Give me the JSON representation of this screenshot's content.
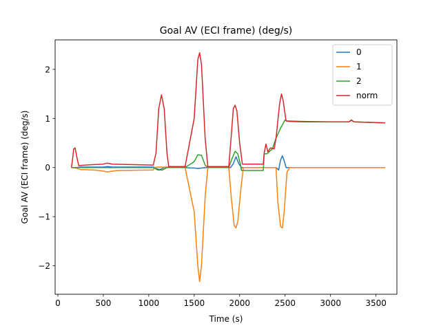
{
  "chart_data": {
    "type": "line",
    "title": "Goal AV (ECI frame) (deg/s)",
    "xlabel": "Time (s)",
    "ylabel": "Goal AV (ECI frame) (deg/s)",
    "xlim": [
      -30,
      3730
    ],
    "ylim": [
      -2.58,
      2.6
    ],
    "xticks": [
      0,
      500,
      1000,
      1500,
      2000,
      2500,
      3000,
      3500
    ],
    "yticks": [
      -2,
      -1,
      0,
      1,
      2
    ],
    "ytick_labels": [
      "−2",
      "−1",
      "0",
      "1",
      "2"
    ],
    "grid": false,
    "legend": "top-right",
    "series": [
      {
        "name": "0",
        "color": "#1f77b4",
        "points": [
          [
            150,
            0
          ],
          [
            200,
            0
          ],
          [
            250,
            0.01
          ],
          [
            500,
            0.01
          ],
          [
            550,
            0.02
          ],
          [
            600,
            0.01
          ],
          [
            1050,
            0.01
          ],
          [
            1080,
            -0.02
          ],
          [
            1120,
            -0.04
          ],
          [
            1150,
            -0.02
          ],
          [
            1180,
            0.01
          ],
          [
            1300,
            0.01
          ],
          [
            1400,
            0.0
          ],
          [
            1460,
            -0.01
          ],
          [
            1500,
            -0.01
          ],
          [
            1540,
            -0.02
          ],
          [
            1580,
            -0.01
          ],
          [
            1620,
            0.0
          ],
          [
            1900,
            0.0
          ],
          [
            1930,
            0.08
          ],
          [
            1960,
            0.22
          ],
          [
            1990,
            0.08
          ],
          [
            2020,
            0.0
          ],
          [
            2260,
            0.0
          ],
          [
            2400,
            0.0
          ],
          [
            2430,
            -0.05
          ],
          [
            2450,
            0.15
          ],
          [
            2470,
            0.24
          ],
          [
            2490,
            0.14
          ],
          [
            2510,
            0.0
          ],
          [
            3600,
            0.0
          ]
        ]
      },
      {
        "name": "1",
        "color": "#ff7f0e",
        "points": [
          [
            150,
            0
          ],
          [
            200,
            -0.01
          ],
          [
            250,
            -0.04
          ],
          [
            400,
            -0.05
          ],
          [
            500,
            -0.07
          ],
          [
            540,
            -0.09
          ],
          [
            580,
            -0.08
          ],
          [
            650,
            -0.06
          ],
          [
            1050,
            -0.05
          ],
          [
            1060,
            0.0
          ],
          [
            1100,
            0.01
          ],
          [
            1400,
            0.0
          ],
          [
            1500,
            -0.9
          ],
          [
            1540,
            -2.0
          ],
          [
            1560,
            -2.32
          ],
          [
            1580,
            -2.0
          ],
          [
            1620,
            -0.6
          ],
          [
            1650,
            0.0
          ],
          [
            1880,
            0.0
          ],
          [
            1910,
            -0.65
          ],
          [
            1940,
            -1.18
          ],
          [
            1960,
            -1.23
          ],
          [
            1980,
            -1.1
          ],
          [
            2010,
            -0.5
          ],
          [
            2040,
            0.0
          ],
          [
            2260,
            0.0
          ],
          [
            2300,
            0.0
          ],
          [
            2400,
            0.0
          ],
          [
            2420,
            -0.7
          ],
          [
            2450,
            -1.2
          ],
          [
            2470,
            -1.23
          ],
          [
            2490,
            -0.9
          ],
          [
            2520,
            -0.1
          ],
          [
            2550,
            0.0
          ],
          [
            3600,
            0.0
          ]
        ]
      },
      {
        "name": "2",
        "color": "#2ca02c",
        "points": [
          [
            150,
            0
          ],
          [
            250,
            0.0
          ],
          [
            1050,
            0.0
          ],
          [
            1100,
            -0.05
          ],
          [
            1150,
            -0.05
          ],
          [
            1200,
            0.0
          ],
          [
            1400,
            0.0
          ],
          [
            1500,
            0.12
          ],
          [
            1540,
            0.26
          ],
          [
            1580,
            0.25
          ],
          [
            1620,
            0.05
          ],
          [
            1650,
            0.0
          ],
          [
            1880,
            0.0
          ],
          [
            1920,
            0.2
          ],
          [
            1950,
            0.33
          ],
          [
            1980,
            0.28
          ],
          [
            2010,
            0.05
          ],
          [
            2020,
            -0.06
          ],
          [
            2260,
            -0.06
          ],
          [
            2270,
            0.28
          ],
          [
            2300,
            0.28
          ],
          [
            2360,
            0.38
          ],
          [
            2400,
            0.6
          ],
          [
            2450,
            0.8
          ],
          [
            2500,
            0.97
          ],
          [
            2520,
            0.95
          ],
          [
            2700,
            0.94
          ],
          [
            3000,
            0.93
          ],
          [
            3200,
            0.93
          ],
          [
            3230,
            0.97
          ],
          [
            3260,
            0.93
          ],
          [
            3600,
            0.91
          ]
        ]
      },
      {
        "name": "norm",
        "color": "#d62728",
        "points": [
          [
            150,
            0.0
          ],
          [
            160,
            0.15
          ],
          [
            175,
            0.38
          ],
          [
            190,
            0.4
          ],
          [
            210,
            0.2
          ],
          [
            230,
            0.04
          ],
          [
            300,
            0.05
          ],
          [
            500,
            0.07
          ],
          [
            540,
            0.09
          ],
          [
            600,
            0.07
          ],
          [
            1050,
            0.05
          ],
          [
            1080,
            0.3
          ],
          [
            1110,
            1.2
          ],
          [
            1140,
            1.48
          ],
          [
            1170,
            1.2
          ],
          [
            1200,
            0.3
          ],
          [
            1220,
            0.02
          ],
          [
            1400,
            0.02
          ],
          [
            1500,
            1.0
          ],
          [
            1540,
            2.2
          ],
          [
            1560,
            2.34
          ],
          [
            1580,
            2.1
          ],
          [
            1620,
            0.6
          ],
          [
            1650,
            0.02
          ],
          [
            1880,
            0.02
          ],
          [
            1910,
            0.7
          ],
          [
            1930,
            1.2
          ],
          [
            1950,
            1.27
          ],
          [
            1970,
            1.15
          ],
          [
            2000,
            0.5
          ],
          [
            2030,
            0.07
          ],
          [
            2260,
            0.07
          ],
          [
            2270,
            0.3
          ],
          [
            2290,
            0.48
          ],
          [
            2310,
            0.32
          ],
          [
            2340,
            0.4
          ],
          [
            2380,
            0.38
          ],
          [
            2400,
            0.6
          ],
          [
            2440,
            1.3
          ],
          [
            2460,
            1.5
          ],
          [
            2480,
            1.35
          ],
          [
            2510,
            0.95
          ],
          [
            2550,
            0.94
          ],
          [
            2700,
            0.93
          ],
          [
            3000,
            0.93
          ],
          [
            3200,
            0.93
          ],
          [
            3230,
            0.96
          ],
          [
            3260,
            0.93
          ],
          [
            3600,
            0.91
          ]
        ]
      }
    ]
  }
}
